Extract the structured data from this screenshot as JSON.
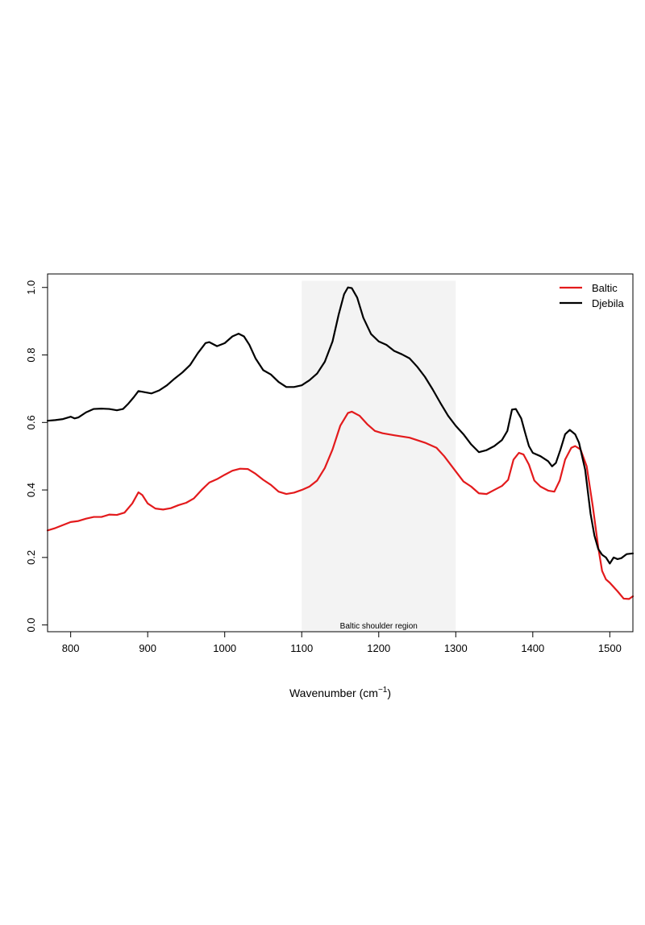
{
  "chart_data": {
    "type": "line",
    "title": "",
    "xlabel": "Wavenumber (cm",
    "xlabel_superscript": "−1",
    "xlabel_suffix": ")",
    "ylabel": "",
    "xlim": [
      770,
      1530
    ],
    "ylim": [
      -0.02,
      1.04
    ],
    "x_ticks": [
      800,
      900,
      1000,
      1100,
      1200,
      1300,
      1400,
      1500
    ],
    "y_ticks": [
      0.0,
      0.2,
      0.4,
      0.6,
      0.8,
      1.0
    ],
    "x_tick_labels": [
      "800",
      "900",
      "1000",
      "1100",
      "1200",
      "1300",
      "1400",
      "1500"
    ],
    "y_tick_labels": [
      "0.0",
      "0.2",
      "0.4",
      "0.6",
      "0.8",
      "1.0"
    ],
    "grid": false,
    "legend_position": "top-right",
    "shaded_region": {
      "x_range": [
        1100,
        1300
      ],
      "y_range": [
        -0.02,
        1.02
      ],
      "label": "Baltic shoulder region",
      "color": "#f3f3f3"
    },
    "series": [
      {
        "name": "Baltic",
        "color": "#e31a1c",
        "points": [
          [
            770,
            0.28
          ],
          [
            780,
            0.287
          ],
          [
            790,
            0.296
          ],
          [
            800,
            0.305
          ],
          [
            810,
            0.308
          ],
          [
            820,
            0.315
          ],
          [
            830,
            0.32
          ],
          [
            840,
            0.32
          ],
          [
            850,
            0.327
          ],
          [
            860,
            0.326
          ],
          [
            870,
            0.333
          ],
          [
            880,
            0.36
          ],
          [
            888,
            0.393
          ],
          [
            893,
            0.385
          ],
          [
            900,
            0.36
          ],
          [
            910,
            0.345
          ],
          [
            920,
            0.342
          ],
          [
            930,
            0.346
          ],
          [
            940,
            0.355
          ],
          [
            950,
            0.362
          ],
          [
            960,
            0.375
          ],
          [
            970,
            0.4
          ],
          [
            980,
            0.422
          ],
          [
            990,
            0.432
          ],
          [
            1000,
            0.445
          ],
          [
            1010,
            0.457
          ],
          [
            1020,
            0.463
          ],
          [
            1030,
            0.462
          ],
          [
            1040,
            0.448
          ],
          [
            1050,
            0.43
          ],
          [
            1060,
            0.415
          ],
          [
            1070,
            0.395
          ],
          [
            1080,
            0.388
          ],
          [
            1090,
            0.392
          ],
          [
            1100,
            0.4
          ],
          [
            1110,
            0.41
          ],
          [
            1120,
            0.428
          ],
          [
            1130,
            0.465
          ],
          [
            1140,
            0.52
          ],
          [
            1150,
            0.59
          ],
          [
            1160,
            0.628
          ],
          [
            1165,
            0.632
          ],
          [
            1175,
            0.62
          ],
          [
            1185,
            0.595
          ],
          [
            1195,
            0.575
          ],
          [
            1205,
            0.568
          ],
          [
            1220,
            0.562
          ],
          [
            1240,
            0.555
          ],
          [
            1260,
            0.54
          ],
          [
            1275,
            0.525
          ],
          [
            1285,
            0.5
          ],
          [
            1300,
            0.455
          ],
          [
            1310,
            0.425
          ],
          [
            1320,
            0.41
          ],
          [
            1330,
            0.39
          ],
          [
            1340,
            0.388
          ],
          [
            1350,
            0.4
          ],
          [
            1360,
            0.412
          ],
          [
            1368,
            0.43
          ],
          [
            1375,
            0.49
          ],
          [
            1382,
            0.51
          ],
          [
            1388,
            0.505
          ],
          [
            1395,
            0.475
          ],
          [
            1402,
            0.428
          ],
          [
            1410,
            0.41
          ],
          [
            1420,
            0.398
          ],
          [
            1428,
            0.395
          ],
          [
            1435,
            0.428
          ],
          [
            1442,
            0.49
          ],
          [
            1450,
            0.525
          ],
          [
            1455,
            0.53
          ],
          [
            1462,
            0.52
          ],
          [
            1470,
            0.47
          ],
          [
            1478,
            0.35
          ],
          [
            1485,
            0.23
          ],
          [
            1490,
            0.16
          ],
          [
            1495,
            0.135
          ],
          [
            1500,
            0.125
          ],
          [
            1510,
            0.1
          ],
          [
            1518,
            0.078
          ],
          [
            1525,
            0.077
          ],
          [
            1530,
            0.085
          ]
        ]
      },
      {
        "name": "Djebila",
        "color": "#000000",
        "points": [
          [
            770,
            0.605
          ],
          [
            780,
            0.607
          ],
          [
            790,
            0.61
          ],
          [
            800,
            0.617
          ],
          [
            805,
            0.612
          ],
          [
            810,
            0.615
          ],
          [
            820,
            0.63
          ],
          [
            830,
            0.64
          ],
          [
            840,
            0.641
          ],
          [
            850,
            0.64
          ],
          [
            860,
            0.636
          ],
          [
            868,
            0.64
          ],
          [
            875,
            0.656
          ],
          [
            882,
            0.675
          ],
          [
            888,
            0.693
          ],
          [
            895,
            0.69
          ],
          [
            905,
            0.686
          ],
          [
            915,
            0.695
          ],
          [
            925,
            0.71
          ],
          [
            935,
            0.73
          ],
          [
            945,
            0.748
          ],
          [
            955,
            0.77
          ],
          [
            965,
            0.805
          ],
          [
            975,
            0.835
          ],
          [
            980,
            0.838
          ],
          [
            990,
            0.826
          ],
          [
            1000,
            0.835
          ],
          [
            1010,
            0.855
          ],
          [
            1018,
            0.863
          ],
          [
            1025,
            0.855
          ],
          [
            1032,
            0.83
          ],
          [
            1040,
            0.79
          ],
          [
            1050,
            0.755
          ],
          [
            1060,
            0.742
          ],
          [
            1070,
            0.72
          ],
          [
            1080,
            0.705
          ],
          [
            1090,
            0.705
          ],
          [
            1100,
            0.71
          ],
          [
            1110,
            0.725
          ],
          [
            1120,
            0.745
          ],
          [
            1130,
            0.78
          ],
          [
            1140,
            0.84
          ],
          [
            1148,
            0.92
          ],
          [
            1155,
            0.98
          ],
          [
            1160,
            1.0
          ],
          [
            1165,
            0.998
          ],
          [
            1172,
            0.97
          ],
          [
            1180,
            0.91
          ],
          [
            1190,
            0.862
          ],
          [
            1200,
            0.84
          ],
          [
            1210,
            0.83
          ],
          [
            1220,
            0.812
          ],
          [
            1230,
            0.802
          ],
          [
            1240,
            0.79
          ],
          [
            1250,
            0.765
          ],
          [
            1260,
            0.735
          ],
          [
            1270,
            0.698
          ],
          [
            1280,
            0.658
          ],
          [
            1290,
            0.62
          ],
          [
            1300,
            0.59
          ],
          [
            1310,
            0.565
          ],
          [
            1320,
            0.535
          ],
          [
            1330,
            0.512
          ],
          [
            1340,
            0.518
          ],
          [
            1350,
            0.53
          ],
          [
            1360,
            0.548
          ],
          [
            1367,
            0.575
          ],
          [
            1373,
            0.638
          ],
          [
            1378,
            0.64
          ],
          [
            1385,
            0.612
          ],
          [
            1390,
            0.57
          ],
          [
            1395,
            0.53
          ],
          [
            1400,
            0.51
          ],
          [
            1410,
            0.5
          ],
          [
            1420,
            0.485
          ],
          [
            1425,
            0.47
          ],
          [
            1430,
            0.48
          ],
          [
            1436,
            0.52
          ],
          [
            1442,
            0.565
          ],
          [
            1448,
            0.578
          ],
          [
            1455,
            0.565
          ],
          [
            1460,
            0.54
          ],
          [
            1468,
            0.46
          ],
          [
            1475,
            0.33
          ],
          [
            1480,
            0.265
          ],
          [
            1485,
            0.225
          ],
          [
            1490,
            0.208
          ],
          [
            1495,
            0.2
          ],
          [
            1500,
            0.182
          ],
          [
            1505,
            0.2
          ],
          [
            1510,
            0.195
          ],
          [
            1515,
            0.198
          ],
          [
            1522,
            0.21
          ],
          [
            1530,
            0.212
          ]
        ]
      }
    ]
  }
}
